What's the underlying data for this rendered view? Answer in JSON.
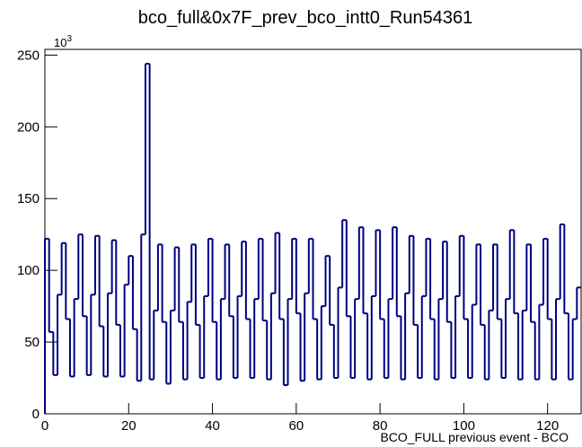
{
  "chart_data": {
    "type": "histogram",
    "title": "bco_full&0x7F_prev_bco_intt0_Run54361",
    "x_label": "BCO_FULL previous event - BCO",
    "y_scale_label": {
      "base": "10",
      "exponent": "3"
    },
    "color": "#000080",
    "bins": [
      0,
      1,
      2,
      3,
      4,
      5,
      6,
      7,
      8,
      9,
      10,
      11,
      12,
      13,
      14,
      15,
      16,
      17,
      18,
      19,
      20,
      21,
      22,
      23,
      24,
      25,
      26,
      27,
      28,
      29,
      30,
      31,
      32,
      33,
      34,
      35,
      36,
      37,
      38,
      39,
      40,
      41,
      42,
      43,
      44,
      45,
      46,
      47,
      48,
      49,
      50,
      51,
      52,
      53,
      54,
      55,
      56,
      57,
      58,
      59,
      60,
      61,
      62,
      63,
      64,
      65,
      66,
      67,
      68,
      69,
      70,
      71,
      72,
      73,
      74,
      75,
      76,
      77,
      78,
      79,
      80,
      81,
      82,
      83,
      84,
      85,
      86,
      87,
      88,
      89,
      90,
      91,
      92,
      93,
      94,
      95,
      96,
      97,
      98,
      99,
      100,
      101,
      102,
      103,
      104,
      105,
      106,
      107,
      108,
      109,
      110,
      111,
      112,
      113,
      114,
      115,
      116,
      117,
      118,
      119,
      120,
      121,
      122,
      123,
      124,
      125,
      126,
      127,
      128
    ],
    "values": [
      122,
      57,
      27,
      83,
      119,
      66,
      26,
      80,
      125,
      68,
      27,
      83,
      124,
      61,
      26,
      84,
      121,
      62,
      26,
      90,
      110,
      59,
      23,
      125,
      244,
      24,
      72,
      118,
      64,
      21,
      72,
      116,
      64,
      24,
      78,
      118,
      62,
      25,
      82,
      122,
      64,
      24,
      80,
      118,
      68,
      25,
      82,
      120,
      66,
      25,
      80,
      122,
      65,
      24,
      84,
      126,
      66,
      20,
      80,
      122,
      70,
      23,
      84,
      122,
      66,
      24,
      75,
      110,
      62,
      25,
      88,
      135,
      68,
      25,
      80,
      130,
      70,
      24,
      82,
      128,
      66,
      25,
      80,
      130,
      68,
      24,
      84,
      124,
      62,
      25,
      82,
      122,
      66,
      24,
      80,
      120,
      64,
      25,
      82,
      124,
      66,
      25,
      76,
      118,
      62,
      24,
      72,
      118,
      66,
      25,
      80,
      128,
      70,
      24,
      72,
      118,
      64,
      24,
      76,
      122,
      66,
      24,
      80,
      132,
      70,
      24,
      66,
      88
    ],
    "xlim": [
      0,
      128
    ],
    "ylim": [
      0,
      254
    ],
    "xticks": [
      0,
      20,
      40,
      60,
      80,
      100,
      120
    ],
    "yticks": [
      0,
      50,
      100,
      150,
      200,
      250
    ]
  }
}
